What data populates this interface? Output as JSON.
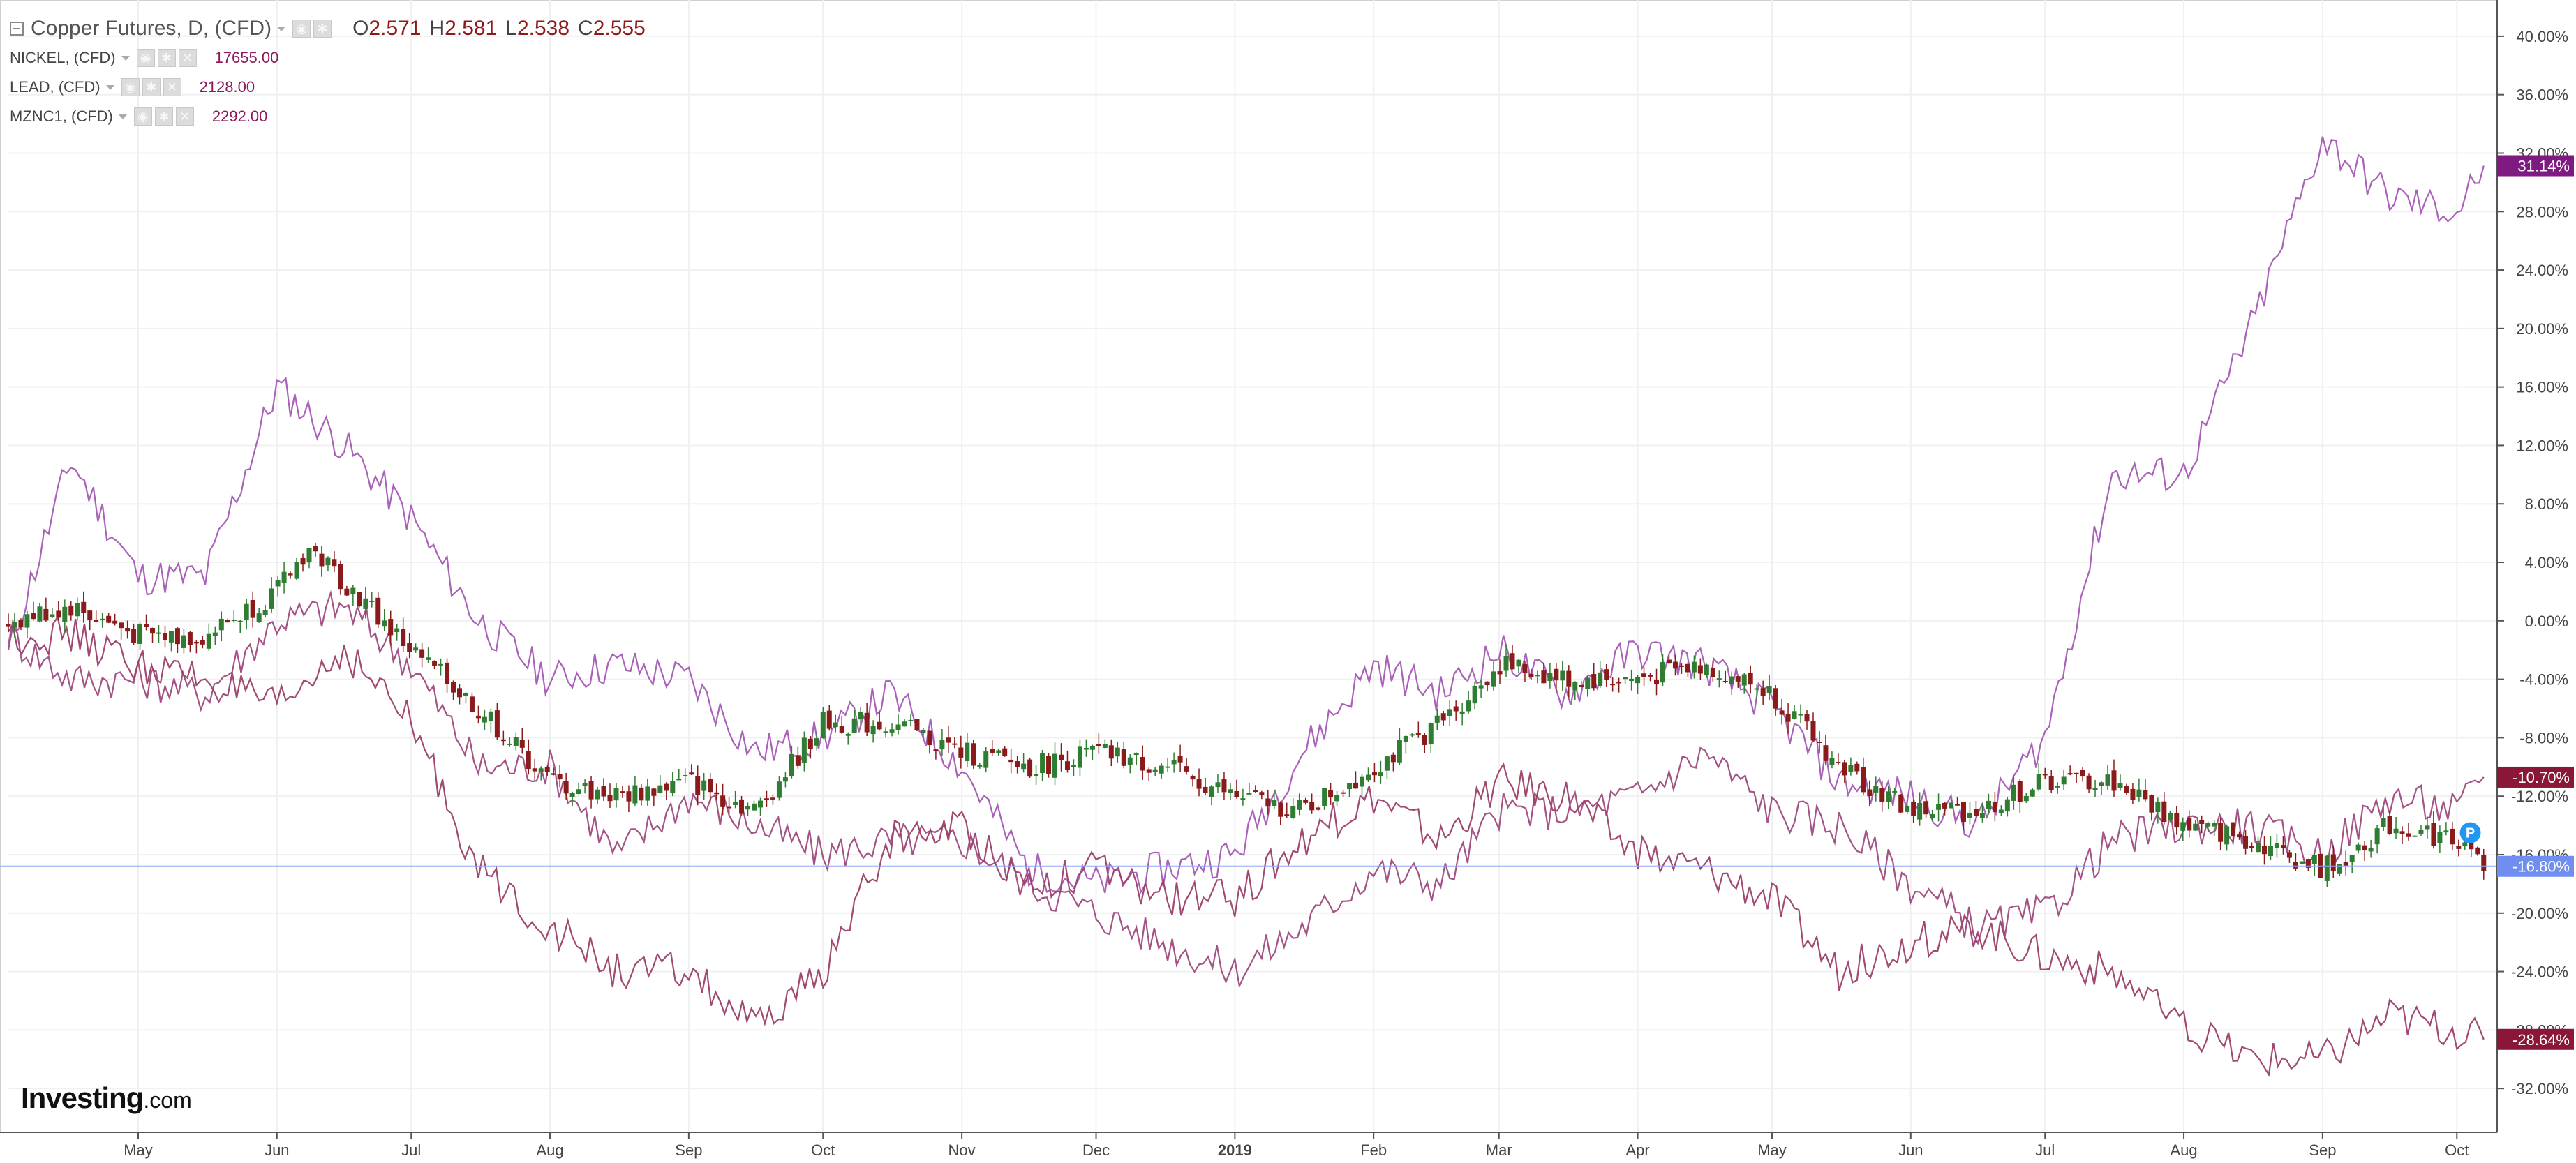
{
  "legend": {
    "main": {
      "title": "Copper Futures, D, (CFD)",
      "ohlc": [
        {
          "label": "O",
          "value": "2.571"
        },
        {
          "label": "H",
          "value": "2.581"
        },
        {
          "label": "L",
          "value": "2.538"
        },
        {
          "label": "C",
          "value": "2.555"
        }
      ]
    },
    "subs": [
      {
        "name": "NICKEL, (CFD)",
        "value": "17655.00"
      },
      {
        "name": "LEAD, (CFD)",
        "value": "2128.00"
      },
      {
        "name": "MZNC1, (CFD)",
        "value": "2292.00"
      }
    ]
  },
  "brand": {
    "name": "Investing",
    "suffix": ".com"
  },
  "colors": {
    "up": "#2e7d32",
    "down": "#8b1a1a",
    "nickel": "#a55ab5",
    "lead": "#9e4a7e",
    "zinc": "#9b3f6c",
    "current_line": "#8fa8f5",
    "axis": "#555555",
    "grid": "#f0f0f0"
  },
  "chart_data": {
    "type": "line",
    "y_axis": {
      "unit": "%",
      "ylim": [
        -35,
        42
      ],
      "ticks": [
        "40.00%",
        "36.00%",
        "32.00%",
        "28.00%",
        "24.00%",
        "20.00%",
        "16.00%",
        "12.00%",
        "8.00%",
        "4.00%",
        "0.00%",
        "-4.00%",
        "-8.00%",
        "-12.00%",
        "-16.00%",
        "-20.00%",
        "-24.00%",
        "-28.00%",
        "-32.00%"
      ],
      "position": "right"
    },
    "x_axis": {
      "range": [
        "2018-04-02",
        "2019-10-10"
      ],
      "ticks": [
        {
          "date": "2018-05-01",
          "label": "May"
        },
        {
          "date": "2018-06-01",
          "label": "Jun"
        },
        {
          "date": "2018-07-01",
          "label": "Jul"
        },
        {
          "date": "2018-08-01",
          "label": "Aug"
        },
        {
          "date": "2018-09-01",
          "label": "Sep"
        },
        {
          "date": "2018-10-01",
          "label": "Oct"
        },
        {
          "date": "2018-11-01",
          "label": "Nov"
        },
        {
          "date": "2018-12-01",
          "label": "Dec"
        },
        {
          "date": "2019-01-01",
          "label": "2019",
          "bold": true
        },
        {
          "date": "2019-02-01",
          "label": "Feb"
        },
        {
          "date": "2019-03-01",
          "label": "Mar"
        },
        {
          "date": "2019-04-01",
          "label": "Apr"
        },
        {
          "date": "2019-05-01",
          "label": "May"
        },
        {
          "date": "2019-06-01",
          "label": "Jun"
        },
        {
          "date": "2019-07-01",
          "label": "Jul"
        },
        {
          "date": "2019-08-01",
          "label": "Aug"
        },
        {
          "date": "2019-09-01",
          "label": "Sep"
        },
        {
          "date": "2019-10-01",
          "label": "Oct"
        }
      ]
    },
    "grid": true,
    "legend_position": "top-left",
    "current_value_line": -16.8,
    "series": [
      {
        "name": "Copper Futures",
        "kind": "candles",
        "points": [
          [
            "2018-04-02",
            0
          ],
          [
            "2018-04-16",
            1
          ],
          [
            "2018-05-01",
            -1
          ],
          [
            "2018-05-16",
            -1
          ],
          [
            "2018-06-01",
            2
          ],
          [
            "2018-06-08",
            5
          ],
          [
            "2018-06-15",
            3
          ],
          [
            "2018-07-01",
            -2
          ],
          [
            "2018-07-16",
            -6
          ],
          [
            "2018-08-01",
            -11
          ],
          [
            "2018-08-16",
            -12
          ],
          [
            "2018-09-01",
            -11
          ],
          [
            "2018-09-16",
            -13
          ],
          [
            "2018-10-01",
            -7
          ],
          [
            "2018-10-16",
            -7
          ],
          [
            "2018-11-01",
            -9
          ],
          [
            "2018-11-16",
            -10
          ],
          [
            "2018-12-01",
            -9
          ],
          [
            "2018-12-16",
            -10
          ],
          [
            "2019-01-01",
            -12
          ],
          [
            "2019-01-16",
            -13
          ],
          [
            "2019-02-01",
            -10
          ],
          [
            "2019-02-16",
            -7
          ],
          [
            "2019-03-01",
            -3
          ],
          [
            "2019-03-16",
            -4
          ],
          [
            "2019-04-01",
            -4
          ],
          [
            "2019-04-16",
            -3
          ],
          [
            "2019-05-01",
            -5
          ],
          [
            "2019-05-16",
            -10
          ],
          [
            "2019-06-01",
            -13
          ],
          [
            "2019-06-16",
            -13
          ],
          [
            "2019-07-01",
            -11
          ],
          [
            "2019-07-16",
            -11
          ],
          [
            "2019-08-01",
            -14
          ],
          [
            "2019-08-16",
            -15
          ],
          [
            "2019-09-01",
            -17
          ],
          [
            "2019-09-16",
            -14
          ],
          [
            "2019-10-01",
            -15
          ],
          [
            "2019-10-07",
            -16.8
          ]
        ]
      },
      {
        "name": "NICKEL",
        "color": "#a55ab5",
        "last": 31.14,
        "points": [
          [
            "2018-04-02",
            -2
          ],
          [
            "2018-04-16",
            11
          ],
          [
            "2018-05-01",
            3
          ],
          [
            "2018-05-16",
            3
          ],
          [
            "2018-06-01",
            16
          ],
          [
            "2018-06-16",
            12
          ],
          [
            "2018-07-01",
            7
          ],
          [
            "2018-07-16",
            0
          ],
          [
            "2018-08-01",
            -4
          ],
          [
            "2018-08-16",
            -3
          ],
          [
            "2018-09-01",
            -4
          ],
          [
            "2018-09-16",
            -9
          ],
          [
            "2018-10-01",
            -8
          ],
          [
            "2018-10-16",
            -5
          ],
          [
            "2018-11-01",
            -10
          ],
          [
            "2018-11-16",
            -17
          ],
          [
            "2018-12-01",
            -18
          ],
          [
            "2018-12-16",
            -17
          ],
          [
            "2019-01-01",
            -16
          ],
          [
            "2019-01-16",
            -9
          ],
          [
            "2019-02-01",
            -3
          ],
          [
            "2019-02-16",
            -5
          ],
          [
            "2019-03-01",
            -2
          ],
          [
            "2019-03-16",
            -5
          ],
          [
            "2019-04-01",
            -2
          ],
          [
            "2019-04-16",
            -3
          ],
          [
            "2019-05-01",
            -6
          ],
          [
            "2019-05-16",
            -11
          ],
          [
            "2019-06-01",
            -12
          ],
          [
            "2019-06-16",
            -14
          ],
          [
            "2019-07-01",
            -8
          ],
          [
            "2019-07-16",
            10
          ],
          [
            "2019-08-01",
            10
          ],
          [
            "2019-08-16",
            20
          ],
          [
            "2019-09-01",
            33
          ],
          [
            "2019-09-16",
            29
          ],
          [
            "2019-10-01",
            28
          ],
          [
            "2019-10-07",
            31.14
          ]
        ]
      },
      {
        "name": "LEAD",
        "color": "#9e4a7e",
        "last": -10.7,
        "points": [
          [
            "2018-04-02",
            -1
          ],
          [
            "2018-04-16",
            -4
          ],
          [
            "2018-05-01",
            -4
          ],
          [
            "2018-05-16",
            -5
          ],
          [
            "2018-06-01",
            0
          ],
          [
            "2018-06-16",
            1
          ],
          [
            "2018-07-01",
            -3
          ],
          [
            "2018-07-16",
            -10
          ],
          [
            "2018-08-01",
            -10
          ],
          [
            "2018-08-16",
            -16
          ],
          [
            "2018-09-01",
            -12
          ],
          [
            "2018-09-16",
            -14
          ],
          [
            "2018-10-01",
            -16
          ],
          [
            "2018-10-16",
            -15
          ],
          [
            "2018-11-01",
            -15
          ],
          [
            "2018-11-16",
            -18
          ],
          [
            "2018-12-01",
            -20
          ],
          [
            "2018-12-16",
            -22
          ],
          [
            "2019-01-01",
            -24
          ],
          [
            "2019-01-16",
            -21
          ],
          [
            "2019-02-01",
            -17
          ],
          [
            "2019-02-16",
            -18
          ],
          [
            "2019-03-01",
            -13
          ],
          [
            "2019-03-16",
            -13
          ],
          [
            "2019-04-01",
            -12
          ],
          [
            "2019-04-16",
            -9
          ],
          [
            "2019-05-01",
            -13
          ],
          [
            "2019-05-16",
            -14
          ],
          [
            "2019-06-01",
            -18
          ],
          [
            "2019-06-16",
            -21
          ],
          [
            "2019-07-01",
            -20
          ],
          [
            "2019-07-16",
            -15
          ],
          [
            "2019-08-01",
            -14
          ],
          [
            "2019-08-16",
            -14
          ],
          [
            "2019-09-01",
            -16
          ],
          [
            "2019-09-16",
            -12
          ],
          [
            "2019-10-01",
            -13
          ],
          [
            "2019-10-07",
            -10.7
          ]
        ]
      },
      {
        "name": "MZNC1",
        "color": "#9b3f6c",
        "last": -28.64,
        "points": [
          [
            "2018-04-02",
            -1
          ],
          [
            "2018-04-16",
            -1
          ],
          [
            "2018-05-01",
            -3
          ],
          [
            "2018-05-16",
            -4
          ],
          [
            "2018-06-01",
            -6
          ],
          [
            "2018-06-16",
            -2
          ],
          [
            "2018-07-01",
            -7
          ],
          [
            "2018-07-16",
            -17
          ],
          [
            "2018-08-01",
            -21
          ],
          [
            "2018-08-16",
            -24
          ],
          [
            "2018-09-01",
            -24
          ],
          [
            "2018-09-16",
            -28
          ],
          [
            "2018-10-01",
            -24
          ],
          [
            "2018-10-16",
            -15
          ],
          [
            "2018-11-01",
            -14
          ],
          [
            "2018-11-16",
            -18
          ],
          [
            "2018-12-01",
            -17
          ],
          [
            "2018-12-16",
            -19
          ],
          [
            "2019-01-01",
            -19
          ],
          [
            "2019-01-16",
            -15
          ],
          [
            "2019-02-01",
            -12
          ],
          [
            "2019-02-16",
            -15
          ],
          [
            "2019-03-01",
            -11
          ],
          [
            "2019-03-16",
            -12
          ],
          [
            "2019-04-01",
            -16
          ],
          [
            "2019-04-16",
            -17
          ],
          [
            "2019-05-01",
            -19
          ],
          [
            "2019-05-16",
            -24
          ],
          [
            "2019-06-01",
            -22
          ],
          [
            "2019-06-16",
            -21
          ],
          [
            "2019-07-01",
            -23
          ],
          [
            "2019-07-16",
            -24
          ],
          [
            "2019-08-01",
            -28
          ],
          [
            "2019-08-16",
            -30
          ],
          [
            "2019-09-01",
            -30
          ],
          [
            "2019-09-16",
            -27
          ],
          [
            "2019-10-01",
            -28
          ],
          [
            "2019-10-07",
            -28.64
          ]
        ]
      }
    ],
    "last_value_labels": [
      {
        "series": "NICKEL",
        "text": "31.14%",
        "color": "#7e1a82"
      },
      {
        "series": "LEAD",
        "text": "-10.70%",
        "color": "#8a1738"
      },
      {
        "series": "Copper Futures",
        "text": "-16.80%",
        "color": "#6f8ef0"
      },
      {
        "series": "MZNC1",
        "text": "-28.64%",
        "color": "#8a1738"
      }
    ],
    "marker": {
      "text": "P",
      "date": "2019-10-04",
      "value": -14.5
    }
  }
}
